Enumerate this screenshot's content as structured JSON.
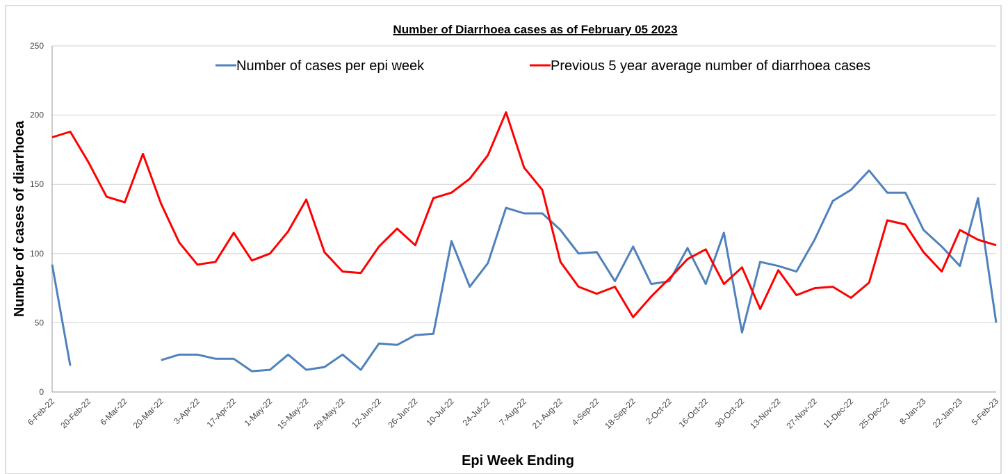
{
  "chart_data": {
    "type": "line",
    "title": "Number of Diarrhoea cases as of February 05 2023",
    "x_label": "Epi Week Ending",
    "y_label": "Number of cases of diarrhoea",
    "categories": [
      "6-Feb-22",
      null,
      "20-Feb-22",
      null,
      "6-Mar-22",
      null,
      "20-Mar-22",
      null,
      "3-Apr-22",
      null,
      "17-Apr-22",
      null,
      "1-May-22",
      null,
      "15-May-22",
      null,
      "29-May-22",
      null,
      "12-Jun-22",
      null,
      "26-Jun-22",
      null,
      "10-Jul-22",
      null,
      "24-Jul-22",
      null,
      "7-Aug-22",
      null,
      "21-Aug-22",
      null,
      "4-Sep-22",
      null,
      "18-Sep-22",
      null,
      "2-Oct-22",
      null,
      "16-Oct-22",
      null,
      "30-Oct-22",
      null,
      "13-Nov-22",
      null,
      "27-Nov-22",
      null,
      "11-Dec-22",
      null,
      "25-Dec-22",
      null,
      "8-Jan-23",
      null,
      "22-Jan-23",
      null,
      "5-Feb-23"
    ],
    "series": [
      {
        "name": "Number of cases per epi week",
        "color": "#4f81bd",
        "values": [
          92,
          19,
          null,
          null,
          null,
          null,
          23,
          27,
          27,
          24,
          24,
          15,
          16,
          27,
          16,
          18,
          27,
          16,
          35,
          34,
          41,
          42,
          109,
          76,
          93,
          133,
          129,
          129,
          117,
          100,
          101,
          80,
          105,
          78,
          80,
          104,
          78,
          115,
          43,
          94,
          91,
          87,
          110,
          138,
          146,
          160,
          144,
          144,
          117,
          105,
          91,
          140,
          50
        ]
      },
      {
        "name": "Previous 5 year average number of diarrhoea cases",
        "color": "#ff0000",
        "values": [
          184,
          188,
          166,
          141,
          137,
          172,
          136,
          108,
          92,
          94,
          115,
          95,
          100,
          116,
          139,
          101,
          87,
          86,
          105,
          118,
          106,
          140,
          144,
          154,
          171,
          202,
          162,
          146,
          94,
          76,
          71,
          76,
          54,
          69,
          82,
          96,
          103,
          78,
          90,
          60,
          88,
          70,
          75,
          76,
          68,
          79,
          124,
          121,
          101,
          87,
          117,
          110,
          106
        ]
      }
    ],
    "ylim": [
      0,
      250
    ],
    "yticks": [
      0,
      50,
      100,
      150,
      200,
      250
    ],
    "grid": true,
    "legend": "top"
  }
}
